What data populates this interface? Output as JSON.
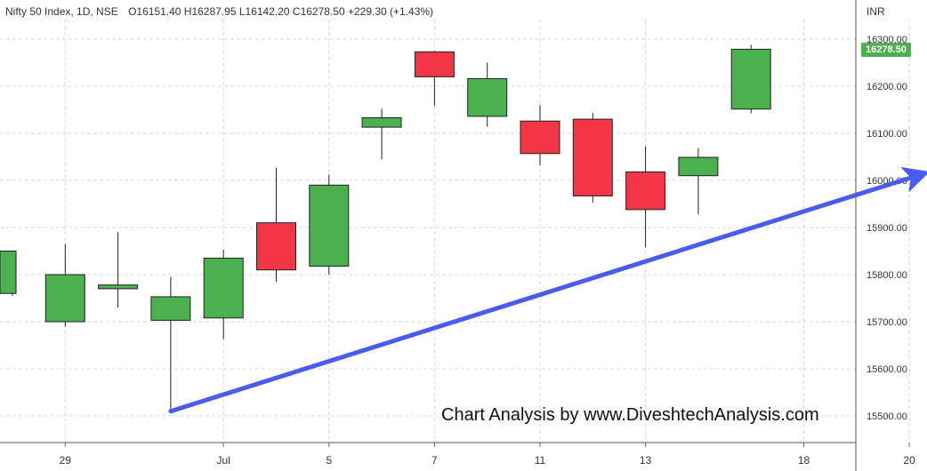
{
  "header": {
    "symbol_info": "Nifty 50 Index, 1D, NSE",
    "ohlc": "O16151.40  H16287.95  L16142.20  C16278.50  +229.30 (+1.43%)"
  },
  "watermark": "Chart Analysis by www.DiveshtechAnalysis.com",
  "colors": {
    "up": "#4caf50",
    "down": "#f23645",
    "trend": "#4a5cf0",
    "grid": "#d8d8d8"
  },
  "chart_data": {
    "type": "candlestick",
    "currency": "INR",
    "last_price_label": "16278.50",
    "ylim": [
      15460,
      16340
    ],
    "y_ticks": [
      "16300.00",
      "16200.00",
      "16100.00",
      "16000.00",
      "15900.00",
      "15800.00",
      "15700.00",
      "15600.00",
      "15500.00"
    ],
    "x_ticks": [
      {
        "label": "29",
        "index": 1
      },
      {
        "label": "Jul",
        "index": 4
      },
      {
        "label": "5",
        "index": 6
      },
      {
        "label": "7",
        "index": 8
      },
      {
        "label": "11",
        "index": 10
      },
      {
        "label": "13",
        "index": 12
      },
      {
        "label": "18",
        "index": 15
      },
      {
        "label": "20",
        "index": 17
      }
    ],
    "candles": [
      {
        "i": 0,
        "open": 15760,
        "high": 15850,
        "low": 15755,
        "close": 15850
      },
      {
        "i": 1,
        "open": 15700,
        "high": 15865,
        "low": 15690,
        "close": 15800
      },
      {
        "i": 2,
        "open": 15770,
        "high": 15890,
        "low": 15730,
        "close": 15778
      },
      {
        "i": 3,
        "open": 15703,
        "high": 15795,
        "low": 15510,
        "close": 15753
      },
      {
        "i": 4,
        "open": 15708,
        "high": 15853,
        "low": 15663,
        "close": 15835
      },
      {
        "i": 5,
        "open": 15910,
        "high": 16027,
        "low": 15785,
        "close": 15810
      },
      {
        "i": 6,
        "open": 15818,
        "high": 16012,
        "low": 15800,
        "close": 15990
      },
      {
        "i": 7,
        "open": 16113,
        "high": 16152,
        "low": 16045,
        "close": 16133
      },
      {
        "i": 8,
        "open": 16273,
        "high": 16275,
        "low": 16158,
        "close": 16220
      },
      {
        "i": 9,
        "open": 16136,
        "high": 16250,
        "low": 16114,
        "close": 16216
      },
      {
        "i": 10,
        "open": 16126,
        "high": 16160,
        "low": 16032,
        "close": 16057
      },
      {
        "i": 11,
        "open": 16130,
        "high": 16143,
        "low": 15953,
        "close": 15967
      },
      {
        "i": 12,
        "open": 16018,
        "high": 16072,
        "low": 15858,
        "close": 15938
      },
      {
        "i": 13,
        "open": 16010,
        "high": 16068,
        "low": 15928,
        "close": 16049
      },
      {
        "i": 14,
        "open": 16151.4,
        "high": 16287.95,
        "low": 16142.2,
        "close": 16278.5
      }
    ],
    "trendline": {
      "from_i": 3,
      "from_price": 15510,
      "to_i": 17.15,
      "to_price": 16010
    }
  }
}
